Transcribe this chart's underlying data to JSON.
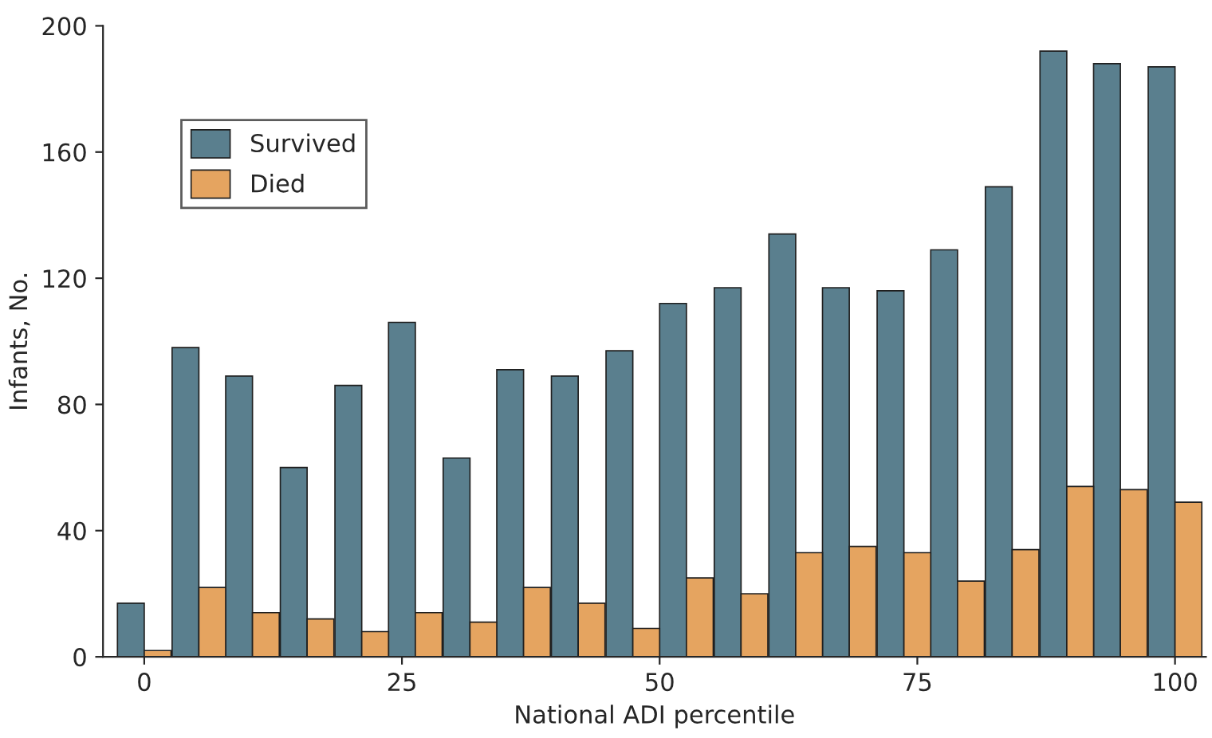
{
  "chart_data": {
    "type": "bar",
    "xlabel": "National ADI percentile",
    "ylabel": "Infants, No.",
    "x": [
      0,
      5.3,
      10.5,
      15.8,
      21.1,
      26.3,
      31.6,
      36.8,
      42.1,
      47.4,
      52.6,
      57.9,
      63.2,
      68.4,
      73.7,
      78.9,
      84.2,
      89.5,
      94.7,
      100
    ],
    "series": [
      {
        "name": "Survived",
        "color": "#5a7f8e",
        "values": [
          17,
          98,
          89,
          60,
          86,
          106,
          63,
          91,
          89,
          97,
          112,
          117,
          134,
          117,
          116,
          129,
          149,
          192,
          188,
          187
        ]
      },
      {
        "name": "Died",
        "color": "#e5a460",
        "values": [
          2,
          22,
          14,
          12,
          8,
          14,
          11,
          22,
          17,
          9,
          25,
          20,
          33,
          35,
          33,
          24,
          34,
          54,
          53,
          49
        ]
      }
    ],
    "xlim": [
      -4,
      103
    ],
    "ylim": [
      0,
      200
    ],
    "xticks": [
      0,
      25,
      50,
      75,
      100
    ],
    "yticks": [
      0,
      40,
      80,
      120,
      160,
      200
    ],
    "grid": false,
    "legend": "top left"
  }
}
